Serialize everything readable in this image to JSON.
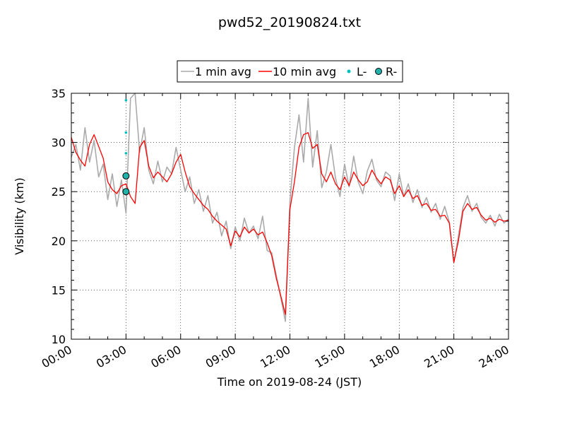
{
  "chart_data": {
    "type": "line",
    "title": "pwd52_20190824.txt",
    "xlabel": "Time on 2019-08-24 (JST)",
    "ylabel": "Visibility (km)",
    "xlim": [
      "00:00",
      "24:00"
    ],
    "ylim": [
      10,
      35
    ],
    "x_ticks": [
      "00:00",
      "03:00",
      "06:00",
      "09:00",
      "12:00",
      "15:00",
      "18:00",
      "21:00",
      "24:00"
    ],
    "y_ticks": [
      "10",
      "15",
      "20",
      "25",
      "30",
      "35"
    ],
    "grid": true,
    "legend_position": "top-center",
    "colors": {
      "1min": "#aaaaaa",
      "10min": "#ff0000",
      "L": "#00bfbf",
      "R": "#20b2aa"
    },
    "series": [
      {
        "name": "1 min avg",
        "style": "line",
        "color": "#aaaaaa",
        "x_hours": [
          0,
          0.25,
          0.5,
          0.75,
          1.0,
          1.25,
          1.5,
          1.75,
          2.0,
          2.25,
          2.5,
          2.75,
          3.0,
          3.25,
          3.5,
          3.75,
          4.0,
          4.25,
          4.5,
          4.75,
          5.0,
          5.25,
          5.5,
          5.75,
          6.0,
          6.25,
          6.5,
          6.75,
          7.0,
          7.25,
          7.5,
          7.75,
          8.0,
          8.25,
          8.5,
          8.75,
          9.0,
          9.25,
          9.5,
          9.75,
          10.0,
          10.25,
          10.5,
          10.75,
          11.0,
          11.25,
          11.5,
          11.75,
          12.0,
          12.25,
          12.5,
          12.75,
          13.0,
          13.25,
          13.5,
          13.75,
          14.0,
          14.25,
          14.5,
          14.75,
          15.0,
          15.25,
          15.5,
          15.75,
          16.0,
          16.25,
          16.5,
          16.75,
          17.0,
          17.25,
          17.5,
          17.75,
          18.0,
          18.25,
          18.5,
          18.75,
          19.0,
          19.25,
          19.5,
          19.75,
          20.0,
          20.25,
          20.5,
          20.75,
          21.0,
          21.25,
          21.5,
          21.75,
          22.0,
          22.25,
          22.5,
          22.75,
          23.0,
          23.25,
          23.5,
          23.75,
          24.0
        ],
        "values": [
          28.5,
          29.8,
          27.2,
          31.5,
          28.0,
          30.2,
          26.5,
          27.8,
          24.2,
          26.8,
          23.5,
          26.2,
          22.8,
          34.5,
          35.0,
          29.0,
          31.5,
          27.2,
          25.8,
          28.1,
          26.0,
          27.5,
          26.8,
          29.5,
          27.2,
          25.0,
          26.5,
          23.8,
          25.2,
          23.0,
          24.6,
          21.8,
          22.9,
          20.5,
          22.0,
          19.2,
          21.4,
          20.0,
          22.3,
          20.8,
          21.5,
          20.2,
          22.5,
          19.0,
          18.8,
          16.5,
          14.2,
          11.8,
          24.0,
          29.5,
          32.8,
          28.0,
          34.5,
          27.5,
          31.2,
          25.4,
          27.0,
          29.8,
          26.4,
          24.5,
          27.8,
          25.5,
          28.6,
          26.0,
          24.8,
          27.1,
          28.3,
          26.2,
          25.5,
          27.0,
          26.6,
          24.1,
          26.8,
          24.5,
          25.8,
          23.9,
          25.2,
          23.4,
          24.4,
          22.9,
          23.8,
          22.2,
          23.5,
          21.9,
          17.8,
          20.5,
          23.4,
          24.6,
          23.0,
          23.8,
          22.4,
          21.8,
          22.6,
          21.5,
          22.7,
          21.8,
          22.2
        ]
      },
      {
        "name": "10 min avg",
        "style": "line",
        "color": "#ff0000",
        "x_hours": [
          0,
          0.25,
          0.5,
          0.75,
          1.0,
          1.25,
          1.5,
          1.75,
          2.0,
          2.25,
          2.5,
          2.75,
          3.0,
          3.25,
          3.5,
          3.75,
          4.0,
          4.25,
          4.5,
          4.75,
          5.0,
          5.25,
          5.5,
          5.75,
          6.0,
          6.25,
          6.5,
          6.75,
          7.0,
          7.25,
          7.5,
          7.75,
          8.0,
          8.25,
          8.5,
          8.75,
          9.0,
          9.25,
          9.5,
          9.75,
          10.0,
          10.25,
          10.5,
          10.75,
          11.0,
          11.25,
          11.5,
          11.75,
          12.0,
          12.25,
          12.5,
          12.75,
          13.0,
          13.25,
          13.5,
          13.75,
          14.0,
          14.25,
          14.5,
          14.75,
          15.0,
          15.25,
          15.5,
          15.75,
          16.0,
          16.25,
          16.5,
          16.75,
          17.0,
          17.25,
          17.5,
          17.75,
          18.0,
          18.25,
          18.5,
          18.75,
          19.0,
          19.25,
          19.5,
          19.75,
          20.0,
          20.25,
          20.5,
          20.75,
          21.0,
          21.25,
          21.5,
          21.75,
          22.0,
          22.25,
          22.5,
          22.75,
          23.0,
          23.25,
          23.5,
          23.75,
          24.0
        ],
        "values": [
          30.5,
          29.0,
          28.2,
          27.6,
          29.8,
          30.8,
          29.6,
          28.4,
          26.0,
          25.2,
          24.8,
          25.6,
          25.8,
          24.5,
          23.8,
          29.5,
          30.2,
          27.6,
          26.4,
          27.0,
          26.5,
          26.0,
          26.8,
          28.0,
          28.8,
          27.0,
          25.5,
          24.8,
          24.2,
          23.6,
          23.2,
          22.5,
          22.0,
          21.6,
          21.2,
          19.5,
          21.0,
          20.4,
          21.4,
          20.8,
          21.2,
          20.6,
          20.9,
          19.8,
          18.5,
          16.2,
          14.4,
          12.5,
          23.2,
          26.0,
          29.5,
          30.8,
          31.0,
          29.4,
          29.8,
          26.8,
          26.0,
          27.0,
          25.8,
          25.2,
          26.5,
          25.6,
          27.0,
          26.2,
          25.6,
          26.0,
          27.2,
          26.4,
          25.8,
          26.5,
          26.2,
          24.8,
          25.6,
          24.5,
          25.2,
          24.3,
          24.6,
          23.6,
          23.8,
          23.1,
          23.2,
          22.5,
          22.6,
          21.8,
          17.8,
          20.0,
          23.0,
          23.8,
          23.2,
          23.4,
          22.6,
          22.1,
          22.3,
          21.9,
          22.2,
          22.0,
          22.1
        ]
      },
      {
        "name": "L-",
        "style": "dots",
        "color": "#00bfbf",
        "x_hours": [
          3.0,
          3.0,
          3.0,
          3.0,
          3.0
        ],
        "values": [
          25.0,
          26.6,
          28.9,
          31.0,
          34.3
        ]
      },
      {
        "name": "R-",
        "style": "markers",
        "color": "#20b2aa",
        "x_hours": [
          3.0,
          3.0
        ],
        "values": [
          25.0,
          26.6
        ]
      }
    ]
  }
}
